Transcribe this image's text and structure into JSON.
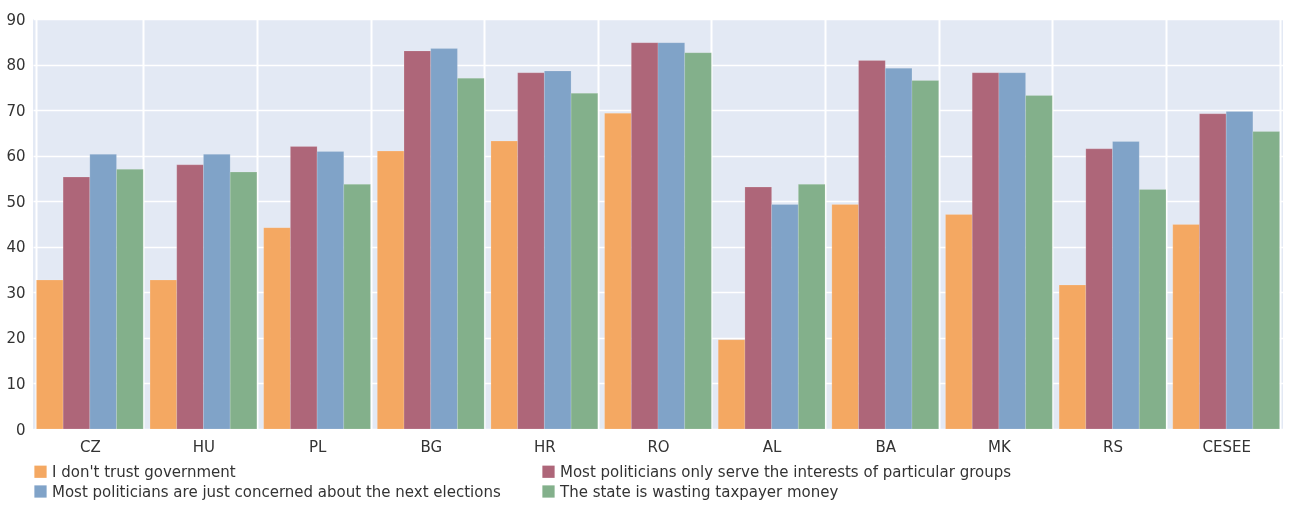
{
  "chart_data": {
    "type": "bar",
    "categories": [
      "CZ",
      "HU",
      "PL",
      "BG",
      "HR",
      "RO",
      "AL",
      "BA",
      "MK",
      "RS",
      "CESEE"
    ],
    "series": [
      {
        "name": "I don't trust government",
        "color": "#f4a862",
        "values": [
          32.7,
          32.7,
          44.2,
          61,
          63.2,
          69.3,
          19.6,
          49.3,
          47.1,
          31.6,
          44.9
        ]
      },
      {
        "name": "Most politicians only serve the interests of particular groups",
        "color": "#ae6679",
        "values": [
          55.3,
          58,
          62,
          83,
          78.2,
          84.8,
          53.1,
          80.9,
          78.2,
          61.5,
          69.2
        ]
      },
      {
        "name": "Most politicians are just concerned about the next elections",
        "color": "#80a3c8",
        "values": [
          60.3,
          60.3,
          60.9,
          83.5,
          78.6,
          84.8,
          49.3,
          79.2,
          78.2,
          63.1,
          69.7
        ]
      },
      {
        "name": "The state is wasting taxpayer money",
        "color": "#83b08b",
        "values": [
          57,
          56.4,
          53.7,
          77,
          73.7,
          82.6,
          53.7,
          76.5,
          73.2,
          52.6,
          65.3
        ]
      }
    ],
    "ylim": [
      0,
      90
    ],
    "yticks": [
      0,
      10,
      20,
      30,
      40,
      50,
      60,
      70,
      80,
      90
    ],
    "grid": true,
    "legend": "bottom"
  }
}
